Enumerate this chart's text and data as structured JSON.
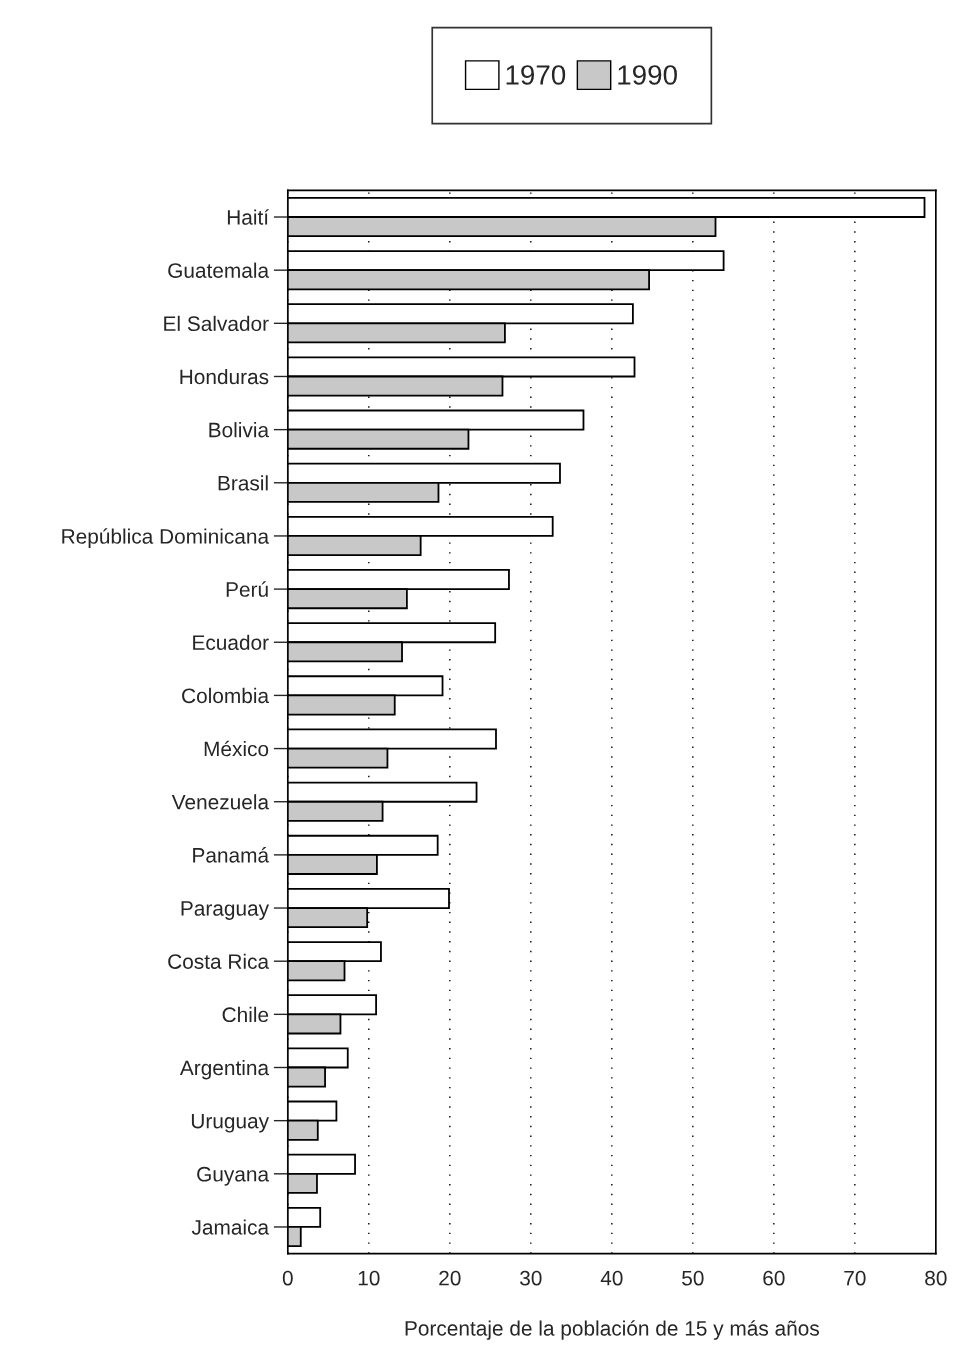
{
  "chart_data": {
    "type": "bar",
    "orientation": "horizontal",
    "xlabel": "Porcentaje de la población de 15 y más años",
    "categories": [
      "Haití",
      "Guatemala",
      "El Salvador",
      "Honduras",
      "Bolivia",
      "Brasil",
      "República Dominicana",
      "Perú",
      "Ecuador",
      "Colombia",
      "México",
      "Venezuela",
      "Panamá",
      "Paraguay",
      "Costa Rica",
      "Chile",
      "Argentina",
      "Uruguay",
      "Guyana",
      "Jamaica"
    ],
    "series": [
      {
        "name": "1970",
        "color": "#ffffff",
        "values": [
          78.6,
          53.8,
          42.6,
          42.8,
          36.5,
          33.6,
          32.7,
          27.3,
          25.6,
          19.1,
          25.7,
          23.3,
          18.5,
          19.9,
          11.5,
          10.9,
          7.4,
          6.0,
          8.3,
          4.0
        ]
      },
      {
        "name": "1990",
        "color": "#c8c8c8",
        "values": [
          52.8,
          44.6,
          26.8,
          26.5,
          22.3,
          18.6,
          16.4,
          14.7,
          14.1,
          13.2,
          12.3,
          11.7,
          11.0,
          9.8,
          7.0,
          6.5,
          4.6,
          3.7,
          3.6,
          1.6
        ]
      }
    ],
    "xlim": [
      0,
      80
    ],
    "xticks": [
      0,
      10,
      20,
      30,
      40,
      50,
      60,
      70,
      80
    ],
    "grid": "x",
    "legend": "top"
  }
}
